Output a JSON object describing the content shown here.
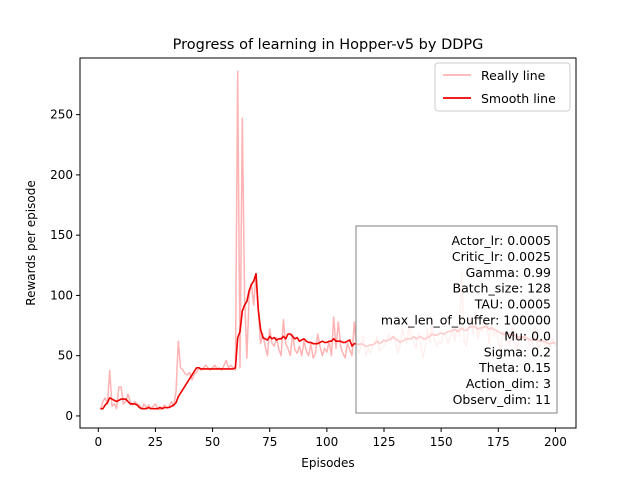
{
  "chart_data": {
    "type": "line",
    "title": "Progress of learning in Hopper-v5 by DDPG",
    "xlabel": "Episodes",
    "ylabel": "Rewards per episode",
    "xlim": [
      -8,
      209
    ],
    "ylim": [
      -10,
      297
    ],
    "xticks": [
      0,
      25,
      50,
      75,
      100,
      125,
      150,
      175,
      200
    ],
    "yticks": [
      0,
      50,
      100,
      150,
      200,
      250
    ],
    "grid": false,
    "legend_position": "top-right",
    "colors": {
      "really": "#ffb3b3",
      "smooth": "#ee0000",
      "axes": "#000000",
      "box_edge": "#808080"
    },
    "series": [
      {
        "name": "Really line",
        "color": "#ffb3b3",
        "x": [
          1,
          2,
          3,
          4,
          5,
          6,
          7,
          8,
          9,
          10,
          11,
          12,
          13,
          14,
          15,
          16,
          17,
          18,
          19,
          20,
          21,
          22,
          23,
          24,
          25,
          26,
          27,
          28,
          29,
          30,
          31,
          32,
          33,
          34,
          35,
          36,
          37,
          38,
          39,
          40,
          41,
          42,
          43,
          44,
          45,
          46,
          47,
          48,
          49,
          50,
          51,
          52,
          53,
          54,
          55,
          56,
          57,
          58,
          59,
          60,
          61,
          62,
          63,
          64,
          65,
          66,
          67,
          68,
          69,
          70,
          71,
          72,
          73,
          74,
          75,
          76,
          77,
          78,
          79,
          80,
          81,
          82,
          83,
          84,
          85,
          86,
          87,
          88,
          89,
          90,
          91,
          92,
          93,
          94,
          95,
          96,
          97,
          98,
          99,
          100,
          101,
          102,
          103,
          104,
          105,
          106,
          107,
          108,
          109,
          110,
          111,
          112,
          113,
          114,
          115,
          116,
          117,
          118,
          119,
          120,
          121,
          122,
          123,
          124,
          125,
          126,
          127,
          128,
          129,
          130,
          131,
          132,
          133,
          134,
          135,
          136,
          137,
          138,
          139,
          140,
          141,
          142,
          143,
          144,
          145,
          146,
          147,
          148,
          149,
          150,
          151,
          152,
          153,
          154,
          155,
          156,
          157,
          158,
          159,
          160,
          161,
          162,
          163,
          164,
          165,
          166,
          167,
          168,
          169,
          170,
          171,
          172,
          173,
          174,
          175,
          176,
          177,
          178,
          179,
          180,
          181,
          182,
          183,
          184,
          185,
          186,
          187,
          188,
          189,
          190,
          191,
          192,
          193,
          194,
          195,
          196,
          197,
          198,
          199,
          200
        ],
        "values": [
          5,
          12,
          15,
          10,
          38,
          8,
          10,
          6,
          24,
          24,
          10,
          12,
          18,
          12,
          9,
          12,
          10,
          9,
          6,
          10,
          7,
          9,
          6,
          8,
          10,
          6,
          5,
          7,
          9,
          6,
          8,
          12,
          8,
          20,
          62,
          40,
          38,
          35,
          34,
          36,
          30,
          35,
          36,
          40,
          38,
          40,
          42,
          40,
          38,
          40,
          42,
          39,
          40,
          38,
          42,
          46,
          40,
          42,
          40,
          38,
          286,
          40,
          247,
          100,
          48,
          100,
          110,
          92,
          118,
          88,
          60,
          68,
          58,
          50,
          72,
          60,
          58,
          65,
          55,
          50,
          80,
          60,
          56,
          50,
          68,
          55,
          52,
          58,
          50,
          62,
          54,
          50,
          60,
          48,
          52,
          68,
          58,
          50,
          56,
          53,
          62,
          50,
          82,
          56,
          78,
          58,
          52,
          48,
          60,
          55,
          50,
          78,
          57,
          52,
          58,
          66,
          50,
          56,
          52,
          58,
          60,
          66,
          54,
          56,
          58,
          62,
          68,
          62,
          65,
          62,
          52,
          58,
          72,
          66,
          60,
          76,
          64,
          62,
          56,
          68,
          60,
          48,
          56,
          72,
          62,
          78,
          64,
          58,
          62,
          60,
          68,
          68,
          60,
          66,
          72,
          62,
          74,
          66,
          120,
          62,
          58,
          74,
          82,
          68,
          86,
          64,
          72,
          70,
          82,
          76,
          60,
          78,
          66,
          70,
          64,
          52,
          70,
          66,
          62,
          58,
          74,
          70,
          54,
          62,
          66,
          64,
          68,
          62,
          58,
          60,
          74,
          60,
          56,
          64,
          60,
          58,
          56,
          62,
          64,
          58
        ]
      },
      {
        "name": "Smooth line",
        "color": "#ee0000",
        "x": [
          1,
          2,
          3,
          4,
          5,
          6,
          7,
          8,
          9,
          10,
          11,
          12,
          13,
          14,
          15,
          16,
          17,
          18,
          19,
          20,
          21,
          22,
          23,
          24,
          25,
          26,
          27,
          28,
          29,
          30,
          31,
          32,
          33,
          34,
          35,
          36,
          37,
          38,
          39,
          40,
          41,
          42,
          43,
          44,
          45,
          46,
          47,
          48,
          49,
          50,
          51,
          52,
          53,
          54,
          55,
          56,
          57,
          58,
          59,
          60,
          61,
          62,
          63,
          64,
          65,
          66,
          67,
          68,
          69,
          70,
          71,
          72,
          73,
          74,
          75,
          76,
          77,
          78,
          79,
          80,
          81,
          82,
          83,
          84,
          85,
          86,
          87,
          88,
          89,
          90,
          91,
          92,
          93,
          94,
          95,
          96,
          97,
          98,
          99,
          100,
          101,
          102,
          103,
          104,
          105,
          106,
          107,
          108,
          109,
          110,
          111,
          112,
          113,
          114,
          115,
          116,
          117,
          118,
          119,
          120,
          121,
          122,
          123,
          124,
          125,
          126,
          127,
          128,
          129,
          130,
          131,
          132,
          133,
          134,
          135,
          136,
          137,
          138,
          139,
          140,
          141,
          142,
          143,
          144,
          145,
          146,
          147,
          148,
          149,
          150,
          151,
          152,
          153,
          154,
          155,
          156,
          157,
          158,
          159,
          160,
          161,
          162,
          163,
          164,
          165,
          166,
          167,
          168,
          169,
          170,
          171,
          172,
          173,
          174,
          175,
          176,
          177,
          178,
          179,
          180,
          181,
          182,
          183,
          184,
          185,
          186,
          187,
          188,
          189,
          190,
          191,
          192,
          193,
          194,
          195,
          196,
          197,
          198,
          199,
          200
        ],
        "values": [
          6,
          6,
          9,
          11,
          15,
          14,
          13,
          12,
          13,
          14,
          14,
          14,
          12,
          10,
          10,
          10,
          9,
          7,
          6,
          6,
          6,
          7,
          6,
          6,
          6,
          6,
          7,
          6,
          7,
          7,
          7,
          8,
          9,
          11,
          16,
          19,
          22,
          25,
          28,
          31,
          34,
          37,
          40,
          40,
          39,
          39,
          39,
          39,
          39,
          39,
          39,
          39,
          39,
          39,
          39,
          39,
          39,
          39,
          39,
          40,
          65,
          70,
          87,
          92,
          95,
          104,
          109,
          112,
          118,
          88,
          72,
          65,
          64,
          63,
          66,
          64,
          65,
          63,
          64,
          64,
          66,
          64,
          68,
          68,
          66,
          64,
          65,
          62,
          63,
          64,
          62,
          61,
          61,
          60,
          60,
          60,
          61,
          62,
          61,
          61,
          62,
          62,
          64,
          62,
          62,
          62,
          61,
          61,
          62,
          63,
          58,
          60,
          60,
          59,
          60,
          59,
          58,
          58,
          59,
          59,
          60,
          62,
          60,
          61,
          63,
          62,
          63,
          64,
          66,
          64,
          63,
          61,
          62,
          63,
          64,
          64,
          64,
          66,
          64,
          65,
          66,
          64,
          64,
          65,
          66,
          68,
          67,
          67,
          68,
          69,
          68,
          69,
          70,
          70,
          71,
          72,
          70,
          71,
          73,
          71,
          71,
          73,
          74,
          74,
          74,
          72,
          73,
          73,
          74,
          74,
          72,
          73,
          72,
          71,
          70,
          69,
          68,
          68,
          69,
          67,
          67,
          67,
          66,
          65,
          66,
          65,
          65,
          64,
          63,
          63,
          64,
          63,
          62,
          62,
          62,
          61,
          60,
          60,
          61,
          60
        ]
      }
    ],
    "legend": [
      {
        "label": "Really line",
        "series": 0
      },
      {
        "label": "Smooth line",
        "series": 1
      }
    ],
    "annotation_lines": [
      "Actor_lr: 0.0005",
      "Critic_lr: 0.0025",
      "Gamma: 0.99",
      "Batch_size: 128",
      "TAU: 0.0005",
      "max_len_of_buffer: 100000",
      "Mu: 0.0",
      "Sigma: 0.2",
      "Theta: 0.15",
      "Action_dim: 3",
      "Observ_dim: 11"
    ]
  }
}
